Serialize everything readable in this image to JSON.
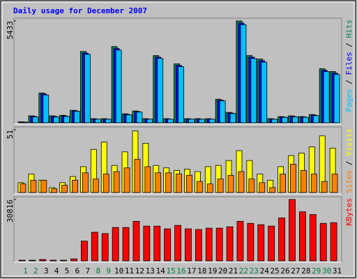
{
  "chart_data": [
    {
      "type": "bar",
      "title": "Daily usage for December 2007",
      "categories": [
        "1",
        "2",
        "3",
        "4",
        "5",
        "6",
        "7",
        "8",
        "9",
        "10",
        "11",
        "12",
        "13",
        "14",
        "15",
        "16",
        "17",
        "18",
        "19",
        "20",
        "21",
        "22",
        "23",
        "24",
        "25",
        "26",
        "27",
        "28",
        "29",
        "30",
        "31"
      ],
      "category_colors": [
        "#008040",
        "#008040",
        "#000000",
        "#000000",
        "#000000",
        "#000000",
        "#000000",
        "#008040",
        "#008040",
        "#000000",
        "#000000",
        "#000000",
        "#000000",
        "#000000",
        "#008040",
        "#008040",
        "#000000",
        "#000000",
        "#000000",
        "#000000",
        "#000000",
        "#008040",
        "#008040",
        "#000000",
        "#000000",
        "#000000",
        "#000000",
        "#000000",
        "#008040",
        "#008040",
        "#000000"
      ],
      "legend_separator": " / ",
      "ylim": [
        0,
        5433
      ],
      "yticks": [
        5433
      ],
      "series": [
        {
          "name": "Hits",
          "color": "#00805C",
          "values": [
            50,
            370,
            1590,
            370,
            400,
            665,
            3807,
            220,
            220,
            4066,
            480,
            630,
            220,
            3585,
            220,
            3142,
            220,
            220,
            220,
            1257,
            555,
            5433,
            3585,
            3400,
            220,
            330,
            370,
            330,
            440,
            2883,
            2735
          ]
        },
        {
          "name": "Files",
          "color": "#0000FF",
          "values": [
            40,
            340,
            1540,
            340,
            370,
            640,
            3720,
            200,
            200,
            3960,
            450,
            600,
            200,
            3500,
            200,
            3060,
            200,
            200,
            200,
            1210,
            520,
            5320,
            3500,
            3310,
            200,
            310,
            340,
            310,
            410,
            2800,
            2650
          ]
        },
        {
          "name": "Pages",
          "color": "#00C0FF",
          "values": [
            30,
            310,
            1480,
            310,
            340,
            610,
            3650,
            190,
            190,
            3880,
            420,
            570,
            190,
            3430,
            190,
            2990,
            190,
            190,
            190,
            1170,
            490,
            5230,
            3430,
            3230,
            190,
            290,
            320,
            290,
            380,
            2730,
            2580
          ]
        }
      ]
    },
    {
      "type": "bar",
      "ylim": [
        0,
        51
      ],
      "yticks": [
        51
      ],
      "series": [
        {
          "name": "Visits",
          "color": "#FFFF00",
          "values": [
            8,
            15,
            10,
            4,
            8,
            13,
            21,
            35,
            41,
            22,
            33,
            50,
            40,
            22,
            20,
            18,
            19,
            17,
            21,
            22,
            26,
            34,
            26,
            15,
            10,
            21,
            30,
            32,
            37,
            46,
            36
          ]
        },
        {
          "name": "Sites",
          "color": "#FF8000",
          "values": [
            7,
            10,
            10,
            3,
            6,
            10,
            16,
            11,
            15,
            17,
            20,
            27,
            21,
            16,
            16,
            15,
            14,
            9,
            7,
            11,
            14,
            17,
            11,
            8,
            4,
            15,
            23,
            18,
            15,
            9,
            15
          ]
        }
      ]
    },
    {
      "type": "bar",
      "ylim": [
        0,
        30816
      ],
      "yticks": [
        30816
      ],
      "series": [
        {
          "name": "KBytes",
          "color": "#FF0000",
          "values": [
            340,
            340,
            680,
            340,
            340,
            1000,
            9930,
            14380,
            13700,
            16780,
            16780,
            19860,
            17460,
            17460,
            16090,
            17800,
            16090,
            15750,
            16430,
            16430,
            17120,
            19860,
            18830,
            18150,
            17460,
            21570,
            30816,
            24650,
            23280,
            18830,
            19170
          ]
        }
      ]
    }
  ]
}
